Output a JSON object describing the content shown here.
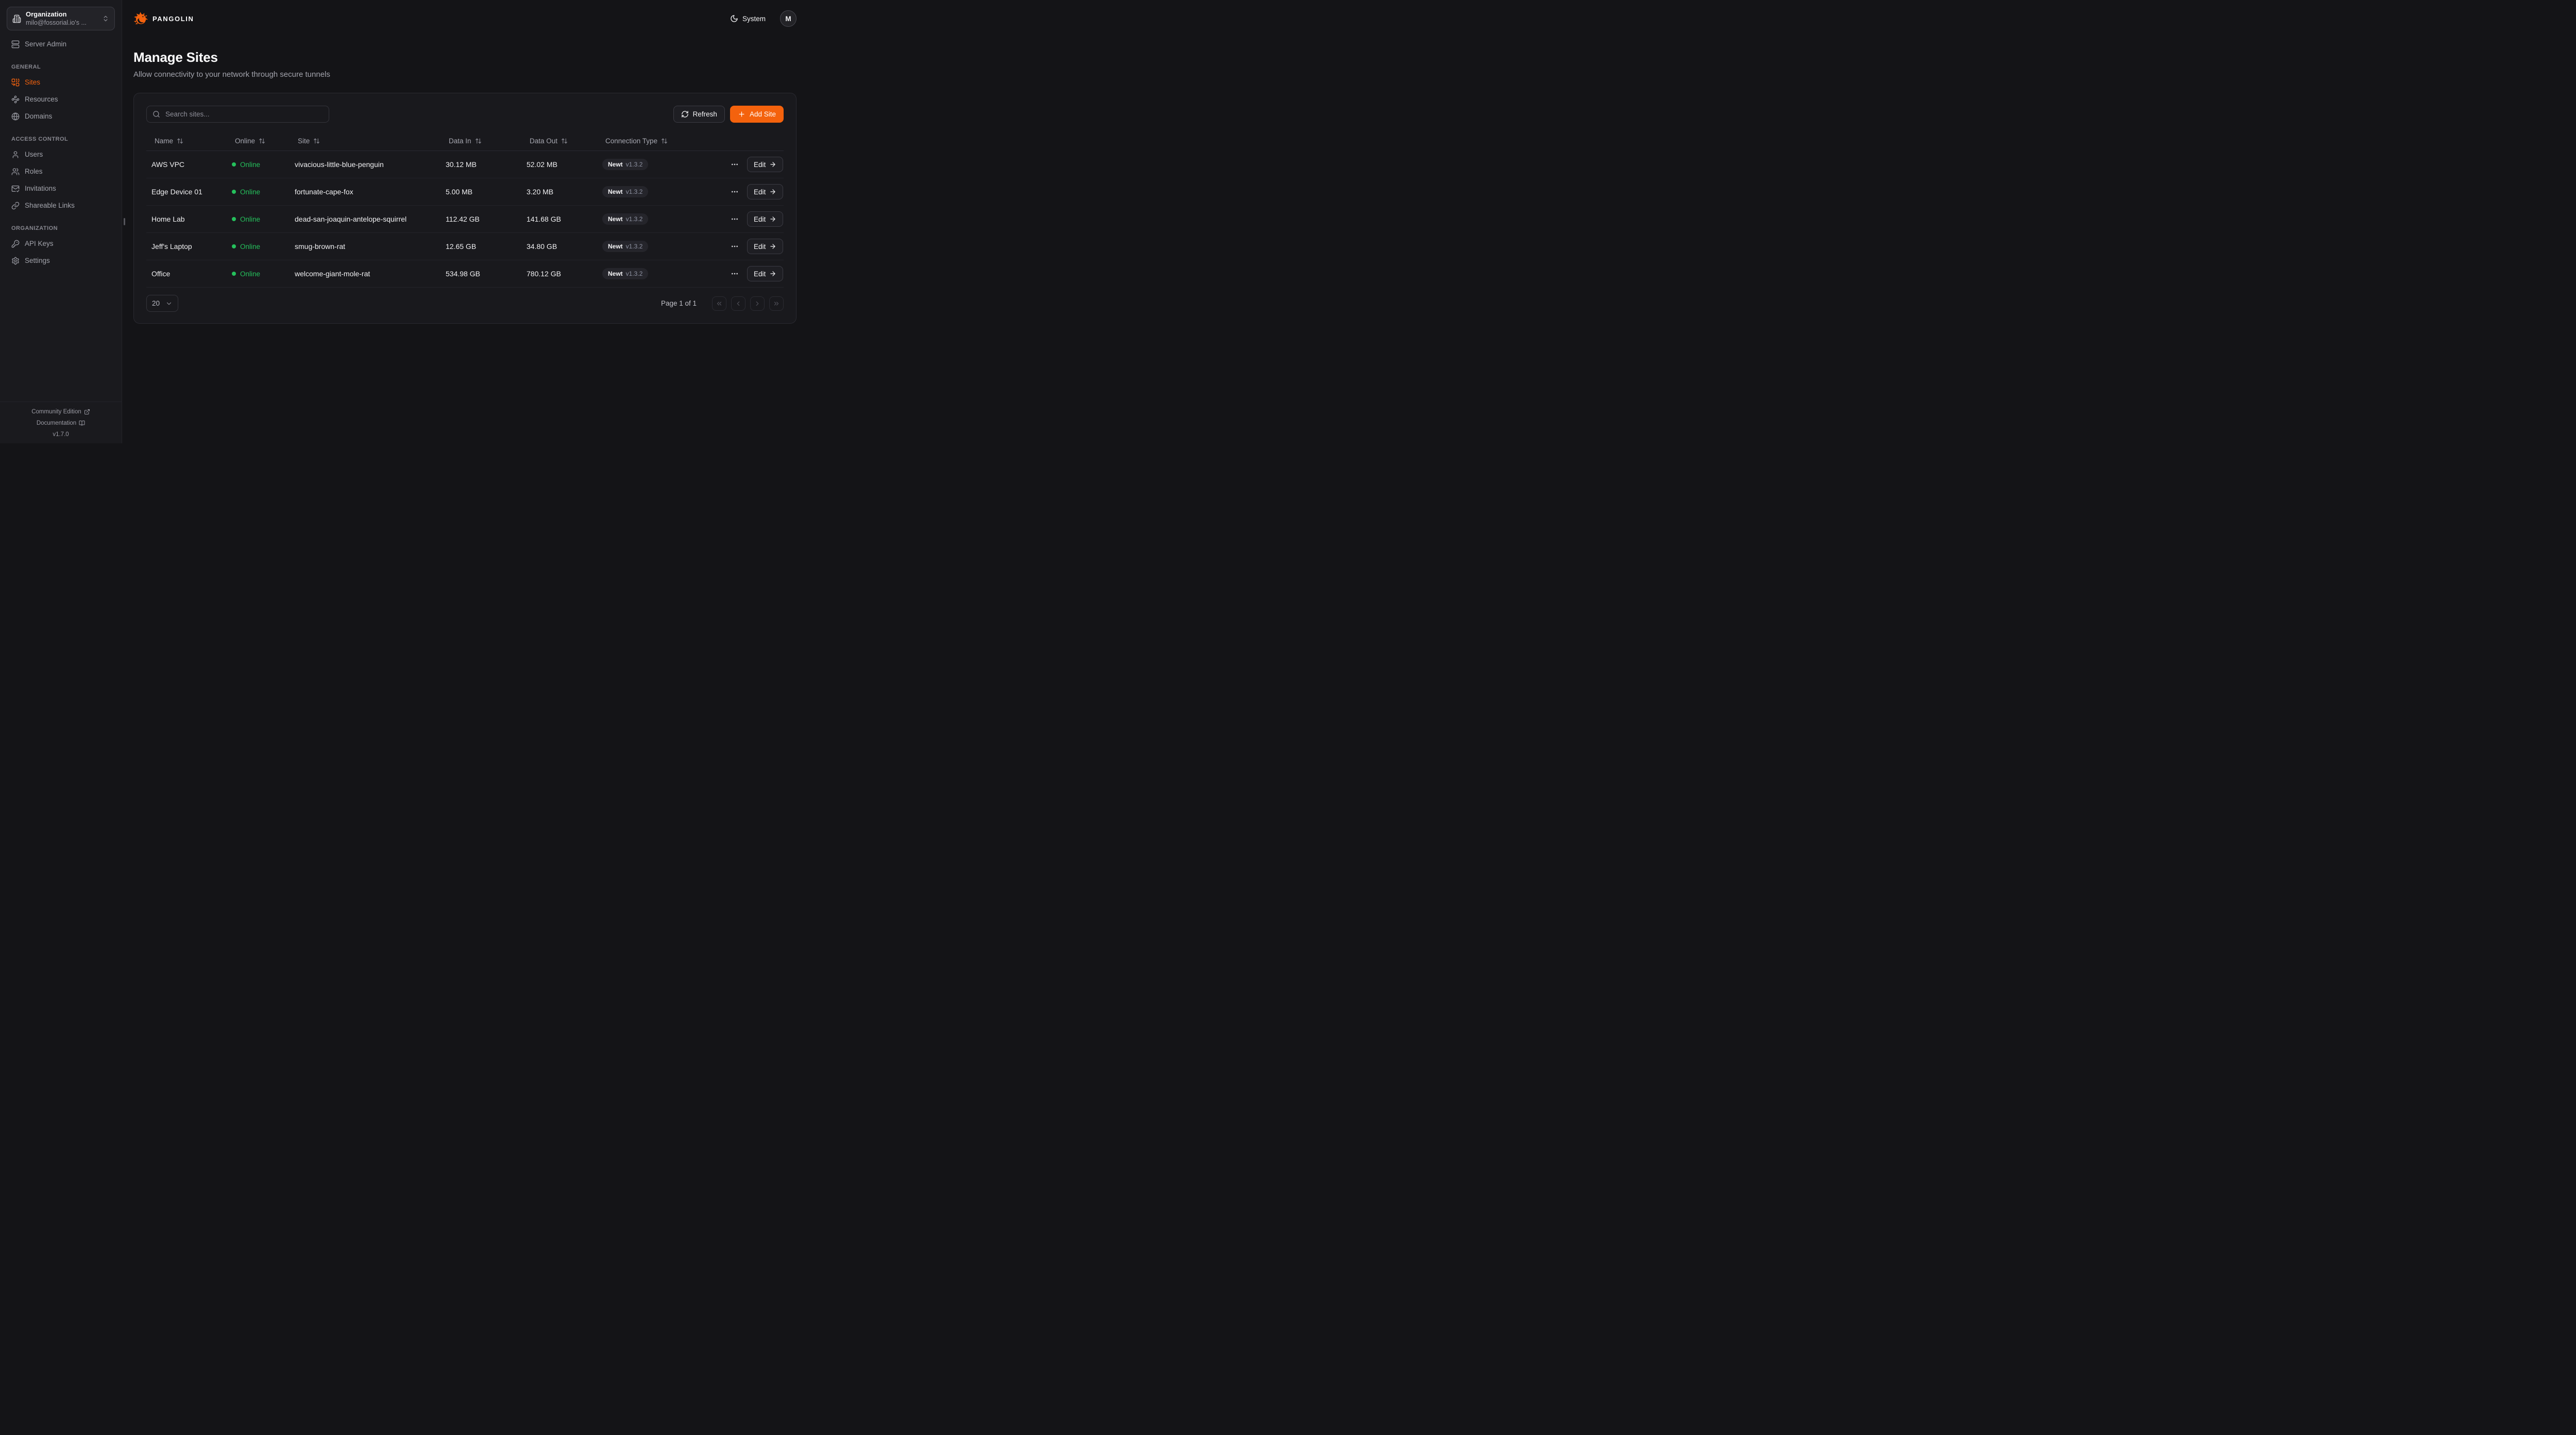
{
  "colors": {
    "accent": "#F4620D",
    "online_green": "#25C05C"
  },
  "header": {
    "brand": "PANGOLIN",
    "theme_label": "System",
    "avatar_initial": "M"
  },
  "sidebar": {
    "org_switcher": {
      "label": "Organization",
      "value": "milo@fossorial.io's ...",
      "icon": "building"
    },
    "server_admin": {
      "label": "Server Admin",
      "icon": "server"
    },
    "sections": [
      {
        "label": "GENERAL",
        "items": [
          {
            "label": "Sites",
            "icon": "combine",
            "active": true
          },
          {
            "label": "Resources",
            "icon": "waypoints",
            "active": false
          },
          {
            "label": "Domains",
            "icon": "globe",
            "active": false
          }
        ]
      },
      {
        "label": "ACCESS CONTROL",
        "items": [
          {
            "label": "Users",
            "icon": "user",
            "active": false
          },
          {
            "label": "Roles",
            "icon": "users",
            "active": false
          },
          {
            "label": "Invitations",
            "icon": "mail-check",
            "active": false
          },
          {
            "label": "Shareable Links",
            "icon": "link",
            "active": false
          }
        ]
      },
      {
        "label": "ORGANIZATION",
        "items": [
          {
            "label": "API Keys",
            "icon": "key",
            "active": false
          },
          {
            "label": "Settings",
            "icon": "gear",
            "active": false
          }
        ]
      }
    ],
    "footer": {
      "links": [
        {
          "label": "Community Edition",
          "icon": "external-link"
        },
        {
          "label": "Documentation",
          "icon": "book-open"
        }
      ],
      "version": "v1.7.0"
    }
  },
  "page": {
    "title": "Manage Sites",
    "subtitle": "Allow connectivity to your network through secure tunnels"
  },
  "toolbar": {
    "search_placeholder": "Search sites...",
    "refresh_label": "Refresh",
    "add_site_label": "Add Site"
  },
  "table": {
    "columns": [
      {
        "label": "Name",
        "sortable": true
      },
      {
        "label": "Online",
        "sortable": true
      },
      {
        "label": "Site",
        "sortable": true
      },
      {
        "label": "Data In",
        "sortable": true
      },
      {
        "label": "Data Out",
        "sortable": true
      },
      {
        "label": "Connection Type",
        "sortable": true
      }
    ],
    "edit_label": "Edit",
    "rows": [
      {
        "name": "AWS VPC",
        "status": "Online",
        "site": "vivacious-little-blue-penguin",
        "data_in": "30.12 MB",
        "data_out": "52.02 MB",
        "conn_type": "Newt",
        "conn_version": "v1.3.2"
      },
      {
        "name": "Edge Device 01",
        "status": "Online",
        "site": "fortunate-cape-fox",
        "data_in": "5.00 MB",
        "data_out": "3.20 MB",
        "conn_type": "Newt",
        "conn_version": "v1.3.2"
      },
      {
        "name": "Home Lab",
        "status": "Online",
        "site": "dead-san-joaquin-antelope-squirrel",
        "data_in": "112.42 GB",
        "data_out": "141.68 GB",
        "conn_type": "Newt",
        "conn_version": "v1.3.2"
      },
      {
        "name": "Jeff's Laptop",
        "status": "Online",
        "site": "smug-brown-rat",
        "data_in": "12.65 GB",
        "data_out": "34.80 GB",
        "conn_type": "Newt",
        "conn_version": "v1.3.2"
      },
      {
        "name": "Office",
        "status": "Online",
        "site": "welcome-giant-mole-rat",
        "data_in": "534.98 GB",
        "data_out": "780.12 GB",
        "conn_type": "Newt",
        "conn_version": "v1.3.2"
      }
    ]
  },
  "pagination": {
    "page_size": "20",
    "status": "Page 1 of 1",
    "buttons": [
      {
        "name": "first-page-button",
        "icon": "chevrons-left"
      },
      {
        "name": "prev-page-button",
        "icon": "chevron-left"
      },
      {
        "name": "next-page-button",
        "icon": "chevron-right"
      },
      {
        "name": "last-page-button",
        "icon": "chevrons-right"
      }
    ]
  }
}
